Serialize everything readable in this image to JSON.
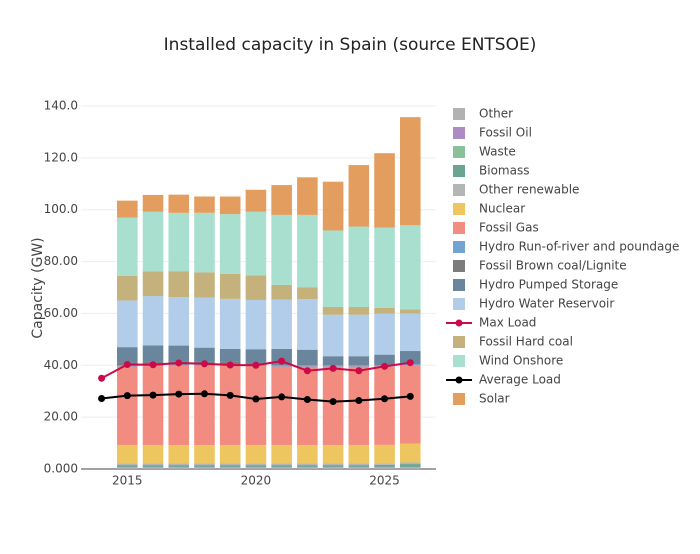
{
  "chart_data": {
    "type": "bar",
    "title": "Installed capacity in Spain (source ENTSOE)",
    "y_label": "Capacity (GW)",
    "xlim": [
      2013.2,
      2027.0
    ],
    "xticks": [
      2015,
      2020,
      2025
    ],
    "ylim": [
      0,
      140
    ],
    "yticks": [
      {
        "value": 0,
        "label": "0.000"
      },
      {
        "value": 20,
        "label": "20.00"
      },
      {
        "value": 40,
        "label": "40.00"
      },
      {
        "value": 60,
        "label": "60.00"
      },
      {
        "value": 80,
        "label": "80.00"
      },
      {
        "value": 100,
        "label": "100.0"
      },
      {
        "value": 120,
        "label": "120.0"
      },
      {
        "value": 140,
        "label": "140.0"
      }
    ],
    "grid": true,
    "series": [
      {
        "name": "Other",
        "type": "bar",
        "color": "#aaaaaa",
        "x": [
          2015,
          2016,
          2017,
          2018,
          2019,
          2020,
          2021,
          2022,
          2023,
          2024,
          2025,
          2026
        ],
        "values": [
          0.3,
          0.3,
          0.3,
          0.3,
          0.3,
          0.3,
          0.3,
          0.3,
          0.3,
          0.3,
          0.3,
          0.3
        ]
      },
      {
        "name": "Fossil Oil",
        "type": "bar",
        "color": "#a47fbf",
        "x": [
          2015,
          2016,
          2017,
          2018,
          2019,
          2020,
          2021,
          2022,
          2023,
          2024,
          2025,
          2026
        ],
        "values": [
          0.2,
          0.2,
          0.2,
          0.2,
          0.2,
          0.2,
          0.2,
          0.2,
          0.2,
          0.2,
          0.2,
          0.2
        ]
      },
      {
        "name": "Waste",
        "type": "bar",
        "color": "#7cba8f",
        "x": [
          2015,
          2016,
          2017,
          2018,
          2019,
          2020,
          2021,
          2022,
          2023,
          2024,
          2025,
          2026
        ],
        "values": [
          0.3,
          0.3,
          0.3,
          0.3,
          0.3,
          0.3,
          0.3,
          0.3,
          0.3,
          0.3,
          0.3,
          0.3
        ]
      },
      {
        "name": "Biomass",
        "type": "bar",
        "color": "#5a9a87",
        "x": [
          2015,
          2016,
          2017,
          2018,
          2019,
          2020,
          2021,
          2022,
          2023,
          2024,
          2025,
          2026
        ],
        "values": [
          0.7,
          0.7,
          0.7,
          0.7,
          0.7,
          0.7,
          0.7,
          0.7,
          0.7,
          0.7,
          0.8,
          1.1
        ]
      },
      {
        "name": "Other renewable",
        "type": "bar",
        "color": "#adadad",
        "x": [
          2015,
          2016,
          2017,
          2018,
          2019,
          2020,
          2021,
          2022,
          2023,
          2024,
          2025,
          2026
        ],
        "values": [
          0.6,
          0.6,
          0.6,
          0.6,
          0.6,
          0.6,
          0.6,
          0.6,
          0.6,
          0.6,
          0.6,
          0.6
        ]
      },
      {
        "name": "Nuclear",
        "type": "bar",
        "color": "#ecc04f",
        "x": [
          2015,
          2016,
          2017,
          2018,
          2019,
          2020,
          2021,
          2022,
          2023,
          2024,
          2025,
          2026
        ],
        "values": [
          7.1,
          7.1,
          7.1,
          7.1,
          7.1,
          7.1,
          7.1,
          7.1,
          7.1,
          7.1,
          7.1,
          7.3
        ]
      },
      {
        "name": "Fossil Gas",
        "type": "bar",
        "color": "#f27f72",
        "x": [
          2015,
          2016,
          2017,
          2018,
          2019,
          2020,
          2021,
          2022,
          2023,
          2024,
          2025,
          2026
        ],
        "values": [
          30.3,
          30.5,
          30.6,
          30.6,
          30.6,
          30.5,
          30.3,
          30.3,
          30.3,
          30.3,
          30.3,
          30.2
        ]
      },
      {
        "name": "Hydro Run-of-river and poundage",
        "type": "bar",
        "color": "#6499cb",
        "x": [
          2015,
          2016,
          2017,
          2018,
          2019,
          2020,
          2021,
          2022,
          2023,
          2024,
          2025,
          2026
        ],
        "values": [
          0.5,
          0.5,
          0.5,
          0.5,
          0.5,
          0.5,
          0.5,
          0.5,
          0.5,
          0.5,
          0.5,
          0.5
        ]
      },
      {
        "name": "Fossil Brown coal/Lignite",
        "type": "bar",
        "color": "#6e6e6e",
        "x": [
          2015,
          2016,
          2017,
          2018,
          2019,
          2020,
          2021,
          2022,
          2023,
          2024,
          2025,
          2026
        ],
        "values": [
          1.1,
          1.1,
          1.1,
          1.1,
          1.1,
          0.7,
          0,
          0,
          0,
          0,
          0,
          0
        ]
      },
      {
        "name": "Hydro Pumped Storage",
        "type": "bar",
        "color": "#5a7992",
        "x": [
          2015,
          2016,
          2017,
          2018,
          2019,
          2020,
          2021,
          2022,
          2023,
          2024,
          2025,
          2026
        ],
        "values": [
          5.9,
          6.4,
          6.2,
          5.4,
          4.9,
          5.3,
          6.3,
          6.0,
          3.5,
          3.5,
          4.0,
          5.0
        ]
      },
      {
        "name": "Hydro Water Reservoir",
        "type": "bar",
        "color": "#a9c8e8",
        "x": [
          2015,
          2016,
          2017,
          2018,
          2019,
          2020,
          2021,
          2022,
          2023,
          2024,
          2025,
          2026
        ],
        "values": [
          18,
          19,
          18.7,
          19.3,
          19.3,
          19,
          19,
          19.5,
          16,
          16,
          15.8,
          14.5
        ]
      },
      {
        "name": "Max Load",
        "type": "line",
        "color": "#cc0a4a",
        "x": [
          2014,
          2015,
          2016,
          2017,
          2018,
          2019,
          2020,
          2021,
          2022,
          2023,
          2024,
          2025,
          2026
        ],
        "values": [
          35,
          40.3,
          40.2,
          40.9,
          40.6,
          40.1,
          40.0,
          41.6,
          37.9,
          38.8,
          37.9,
          39.6,
          41.0
        ]
      },
      {
        "name": "Fossil Hard coal",
        "type": "bar",
        "color": "#bfa96e",
        "x": [
          2015,
          2016,
          2017,
          2018,
          2019,
          2020,
          2021,
          2022,
          2023,
          2024,
          2025,
          2026
        ],
        "values": [
          9.5,
          9.5,
          10,
          9.7,
          9.7,
          9.5,
          5.7,
          4.5,
          3,
          3,
          2.2,
          1.5
        ]
      },
      {
        "name": "Wind Onshore",
        "type": "bar",
        "color": "#9fdcc9",
        "x": [
          2015,
          2016,
          2017,
          2018,
          2019,
          2020,
          2021,
          2022,
          2023,
          2024,
          2025,
          2026
        ],
        "values": [
          22.5,
          23,
          22.5,
          23,
          23,
          24.5,
          27,
          28,
          29.5,
          31,
          31,
          32.5
        ]
      },
      {
        "name": "Average Load",
        "type": "line",
        "color": "#000000",
        "x": [
          2014,
          2015,
          2016,
          2017,
          2018,
          2019,
          2020,
          2021,
          2022,
          2023,
          2024,
          2025,
          2026
        ],
        "values": [
          27.2,
          28.3,
          28.5,
          28.9,
          29.0,
          28.4,
          27.0,
          27.8,
          26.8,
          26.0,
          26.4,
          27.1,
          28.0
        ]
      },
      {
        "name": "Solar",
        "type": "bar",
        "color": "#e0924e",
        "x": [
          2015,
          2016,
          2017,
          2018,
          2019,
          2020,
          2021,
          2022,
          2023,
          2024,
          2025,
          2026
        ],
        "values": [
          6.5,
          6.5,
          7,
          6.3,
          6.8,
          8.5,
          11.5,
          14.5,
          18.8,
          23.7,
          28.7,
          41.7
        ]
      }
    ]
  }
}
